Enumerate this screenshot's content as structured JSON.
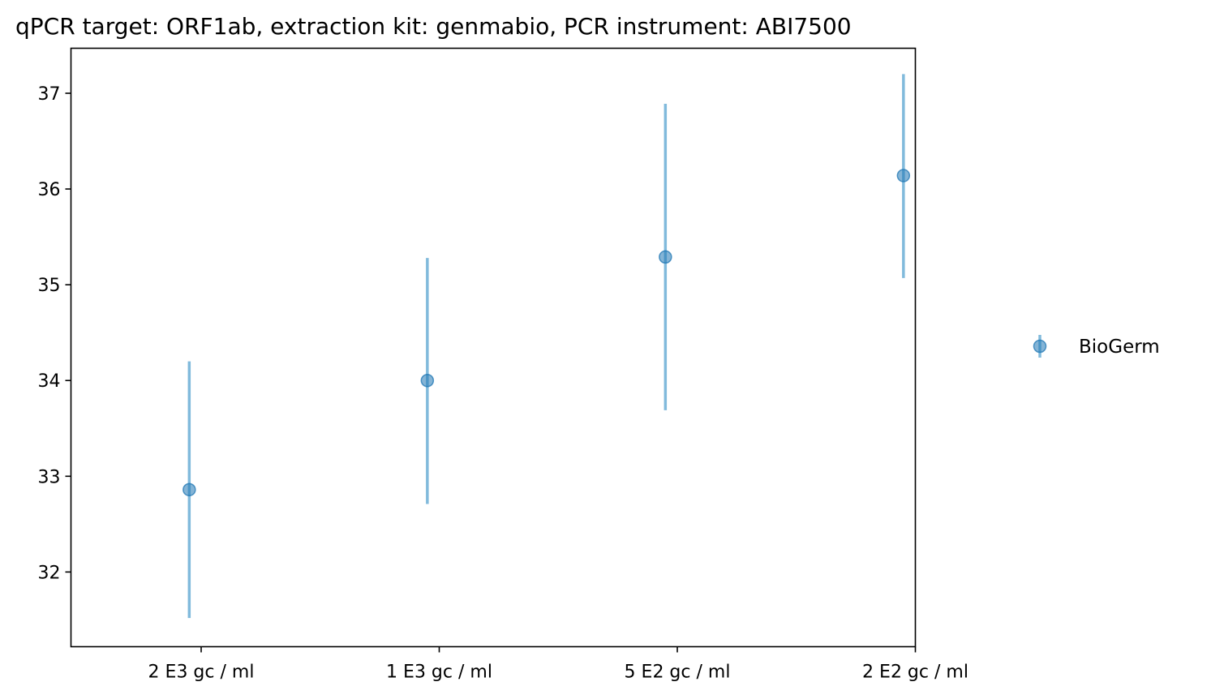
{
  "chart_data": {
    "type": "scatter",
    "title": "qPCR target: ORF1ab, extraction kit: genmabio, PCR instrument: ABI7500",
    "xlabel": "",
    "ylabel": "",
    "categories": [
      "2 E3 gc / ml",
      "1 E3 gc / ml",
      "5 E2 gc / ml",
      "2 E2 gc / ml"
    ],
    "y_ticks": [
      32,
      33,
      34,
      35,
      36,
      37
    ],
    "ylim": [
      31.22,
      37.47
    ],
    "grid": false,
    "legend_position": "right",
    "series": [
      {
        "name": "BioGerm",
        "color": "#1f77b4",
        "errorbar_color": "#6baed6",
        "points": [
          {
            "x": 0.45,
            "y": 32.86,
            "ylow": 31.52,
            "yhigh": 34.2
          },
          {
            "x": 1.45,
            "y": 34.0,
            "ylow": 32.71,
            "yhigh": 35.28
          },
          {
            "x": 2.45,
            "y": 35.29,
            "ylow": 33.69,
            "yhigh": 36.89
          },
          {
            "x": 3.45,
            "y": 36.14,
            "ylow": 35.07,
            "yhigh": 37.2
          }
        ]
      }
    ]
  }
}
